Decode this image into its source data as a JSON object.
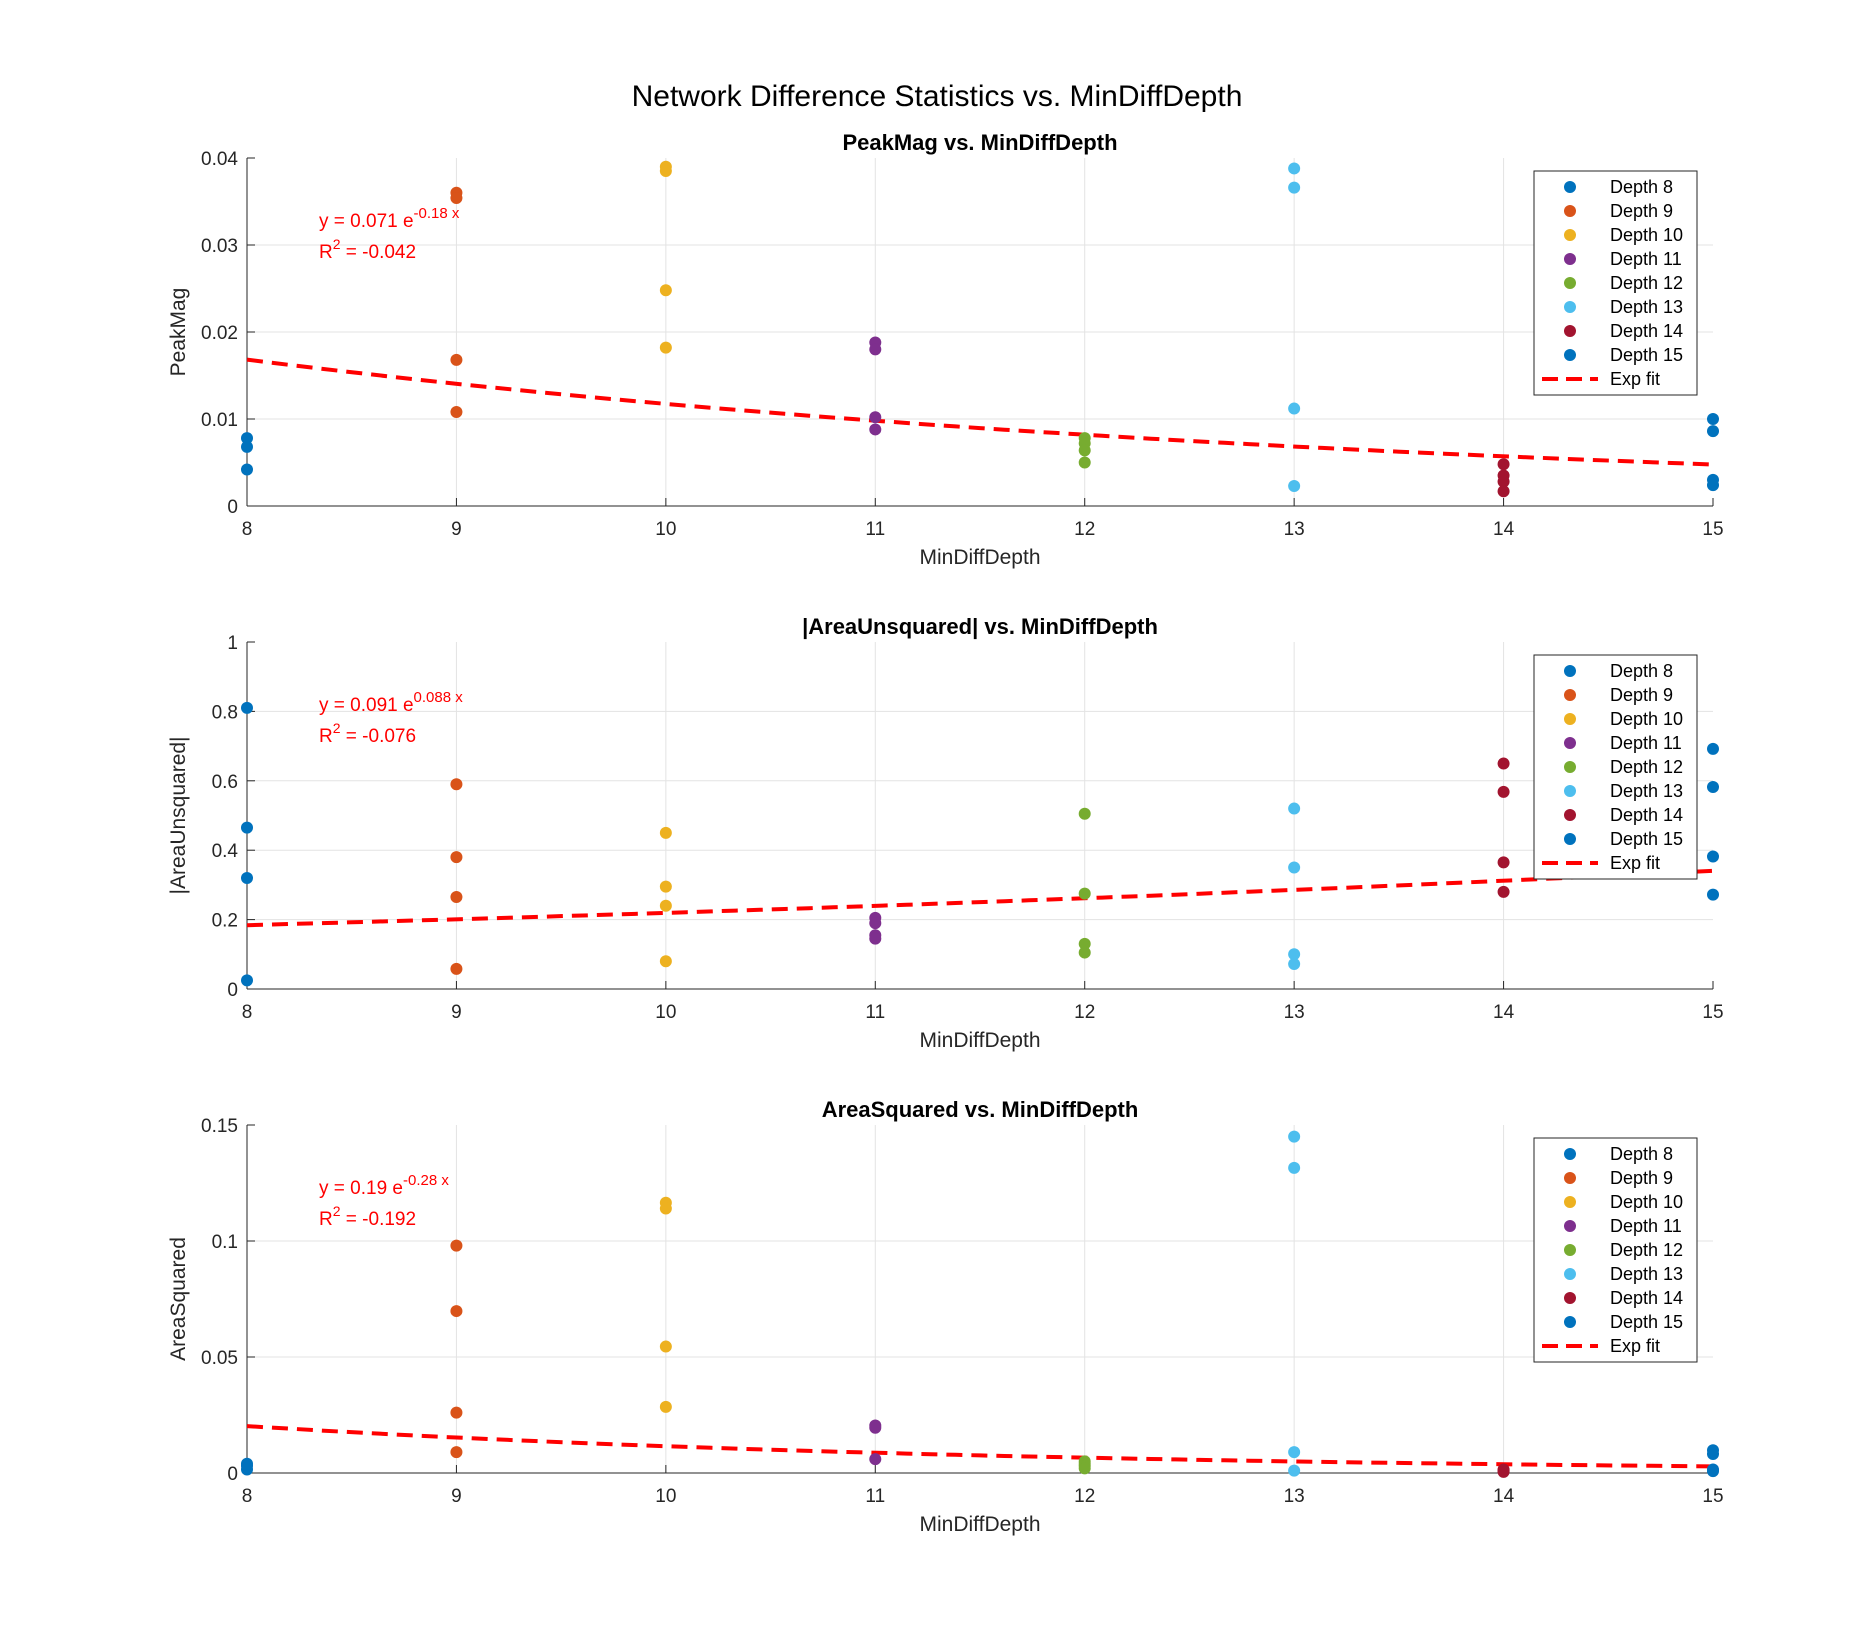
{
  "chart_data": {
    "title": "Network Difference Statistics vs. MinDiffDepth",
    "type": "scatter",
    "legend_position": "top-right",
    "grid": true,
    "legend": [
      "Depth 8",
      "Depth 9",
      "Depth 10",
      "Depth 11",
      "Depth 12",
      "Depth 13",
      "Depth 14",
      "Depth 15",
      "Exp fit"
    ],
    "colors": [
      "#0072BD",
      "#D95319",
      "#EDB120",
      "#7E2F8E",
      "#77AC30",
      "#4DBEEE",
      "#A2142F",
      "#0072BD"
    ],
    "fit_color": "#FF0000",
    "panels": [
      {
        "title": "PeakMag vs. MinDiffDepth",
        "xlabel": "MinDiffDepth",
        "ylabel": "PeakMag",
        "xlim": [
          8,
          15
        ],
        "ylim": [
          0,
          0.04
        ],
        "xticks": [
          "8",
          "9",
          "10",
          "11",
          "12",
          "13",
          "14",
          "15"
        ],
        "yticks": [
          0,
          0.01,
          0.02,
          0.03,
          0.04
        ],
        "ytick_labels": [
          "0",
          "0.01",
          "0.02",
          "0.03",
          "0.04"
        ],
        "fit": {
          "a": 0.071,
          "b": -0.18,
          "eq_prefix": "y = 0.071 e",
          "eq_exp": "-0.18 x",
          "r2_prefix": "R",
          "r2_sup": "2",
          "r2_value": " = -0.042"
        },
        "series": [
          {
            "name": "Depth 8",
            "x": 8,
            "y": [
              0.0078,
              0.0068,
              0.0042
            ]
          },
          {
            "name": "Depth 9",
            "x": 9,
            "y": [
              0.036,
              0.0354,
              0.0168,
              0.0108
            ]
          },
          {
            "name": "Depth 10",
            "x": 10,
            "y": [
              0.039,
              0.0385,
              0.0248,
              0.0182
            ]
          },
          {
            "name": "Depth 11",
            "x": 11,
            "y": [
              0.0188,
              0.018,
              0.0102,
              0.0088
            ]
          },
          {
            "name": "Depth 12",
            "x": 12,
            "y": [
              0.0078,
              0.0072,
              0.0064,
              0.005
            ]
          },
          {
            "name": "Depth 13",
            "x": 13,
            "y": [
              0.0388,
              0.0366,
              0.0112,
              0.0023
            ]
          },
          {
            "name": "Depth 14",
            "x": 14,
            "y": [
              0.0048,
              0.0035,
              0.0028,
              0.0017
            ]
          },
          {
            "name": "Depth 15",
            "x": 15,
            "y": [
              0.01,
              0.0086,
              0.003,
              0.0024
            ]
          }
        ]
      },
      {
        "title": "|AreaUnsquared| vs. MinDiffDepth",
        "xlabel": "MinDiffDepth",
        "ylabel": "|AreaUnsquared|",
        "xlim": [
          8,
          15
        ],
        "ylim": [
          0,
          1
        ],
        "xticks": [
          "8",
          "9",
          "10",
          "11",
          "12",
          "13",
          "14",
          "15"
        ],
        "yticks": [
          0,
          0.2,
          0.4,
          0.6,
          0.8,
          1
        ],
        "ytick_labels": [
          "0",
          "0.2",
          "0.4",
          "0.6",
          "0.8",
          "1"
        ],
        "fit": {
          "a": 0.091,
          "b": 0.088,
          "eq_prefix": "y = 0.091 e",
          "eq_exp": "0.088 x",
          "r2_prefix": "R",
          "r2_sup": "2",
          "r2_value": " = -0.076"
        },
        "series": [
          {
            "name": "Depth 8",
            "x": 8,
            "y": [
              0.81,
              0.465,
              0.32,
              0.025
            ]
          },
          {
            "name": "Depth 9",
            "x": 9,
            "y": [
              0.59,
              0.38,
              0.265,
              0.058
            ]
          },
          {
            "name": "Depth 10",
            "x": 10,
            "y": [
              0.45,
              0.295,
              0.24,
              0.08
            ]
          },
          {
            "name": "Depth 11",
            "x": 11,
            "y": [
              0.205,
              0.19,
              0.155,
              0.145
            ]
          },
          {
            "name": "Depth 12",
            "x": 12,
            "y": [
              0.505,
              0.275,
              0.13,
              0.105
            ]
          },
          {
            "name": "Depth 13",
            "x": 13,
            "y": [
              0.52,
              0.35,
              0.1,
              0.072
            ]
          },
          {
            "name": "Depth 14",
            "x": 14,
            "y": [
              0.65,
              0.568,
              0.365,
              0.28
            ]
          },
          {
            "name": "Depth 15",
            "x": 15,
            "y": [
              0.692,
              0.582,
              0.382,
              0.272
            ]
          }
        ]
      },
      {
        "title": "AreaSquared vs. MinDiffDepth",
        "xlabel": "MinDiffDepth",
        "ylabel": "AreaSquared",
        "xlim": [
          8,
          15
        ],
        "ylim": [
          0,
          0.15
        ],
        "xticks": [
          "8",
          "9",
          "10",
          "11",
          "12",
          "13",
          "14",
          "15"
        ],
        "yticks": [
          0,
          0.05,
          0.1,
          0.15
        ],
        "ytick_labels": [
          "0",
          "0.05",
          "0.1",
          "0.15"
        ],
        "fit": {
          "a": 0.19,
          "b": -0.28,
          "eq_prefix": "y = 0.19 e",
          "eq_exp": "-0.28 x",
          "r2_prefix": "R",
          "r2_sup": "2",
          "r2_value": " = -0.192"
        },
        "series": [
          {
            "name": "Depth 8",
            "x": 8,
            "y": [
              0.004,
              0.003,
              0.0015
            ]
          },
          {
            "name": "Depth 9",
            "x": 9,
            "y": [
              0.098,
              0.0698,
              0.026,
              0.009
            ]
          },
          {
            "name": "Depth 10",
            "x": 10,
            "y": [
              0.1165,
              0.114,
              0.0545,
              0.0285
            ]
          },
          {
            "name": "Depth 11",
            "x": 11,
            "y": [
              0.0205,
              0.0195,
              0.006
            ]
          },
          {
            "name": "Depth 12",
            "x": 12,
            "y": [
              0.005,
              0.004,
              0.003,
              0.002
            ]
          },
          {
            "name": "Depth 13",
            "x": 13,
            "y": [
              0.145,
              0.1315,
              0.009,
              0.001
            ]
          },
          {
            "name": "Depth 14",
            "x": 14,
            "y": [
              0.0015,
              0.0011,
              0.0008,
              0.0005
            ]
          },
          {
            "name": "Depth 15",
            "x": 15,
            "y": [
              0.0098,
              0.0082,
              0.0015,
              0.0008
            ]
          }
        ]
      }
    ]
  }
}
